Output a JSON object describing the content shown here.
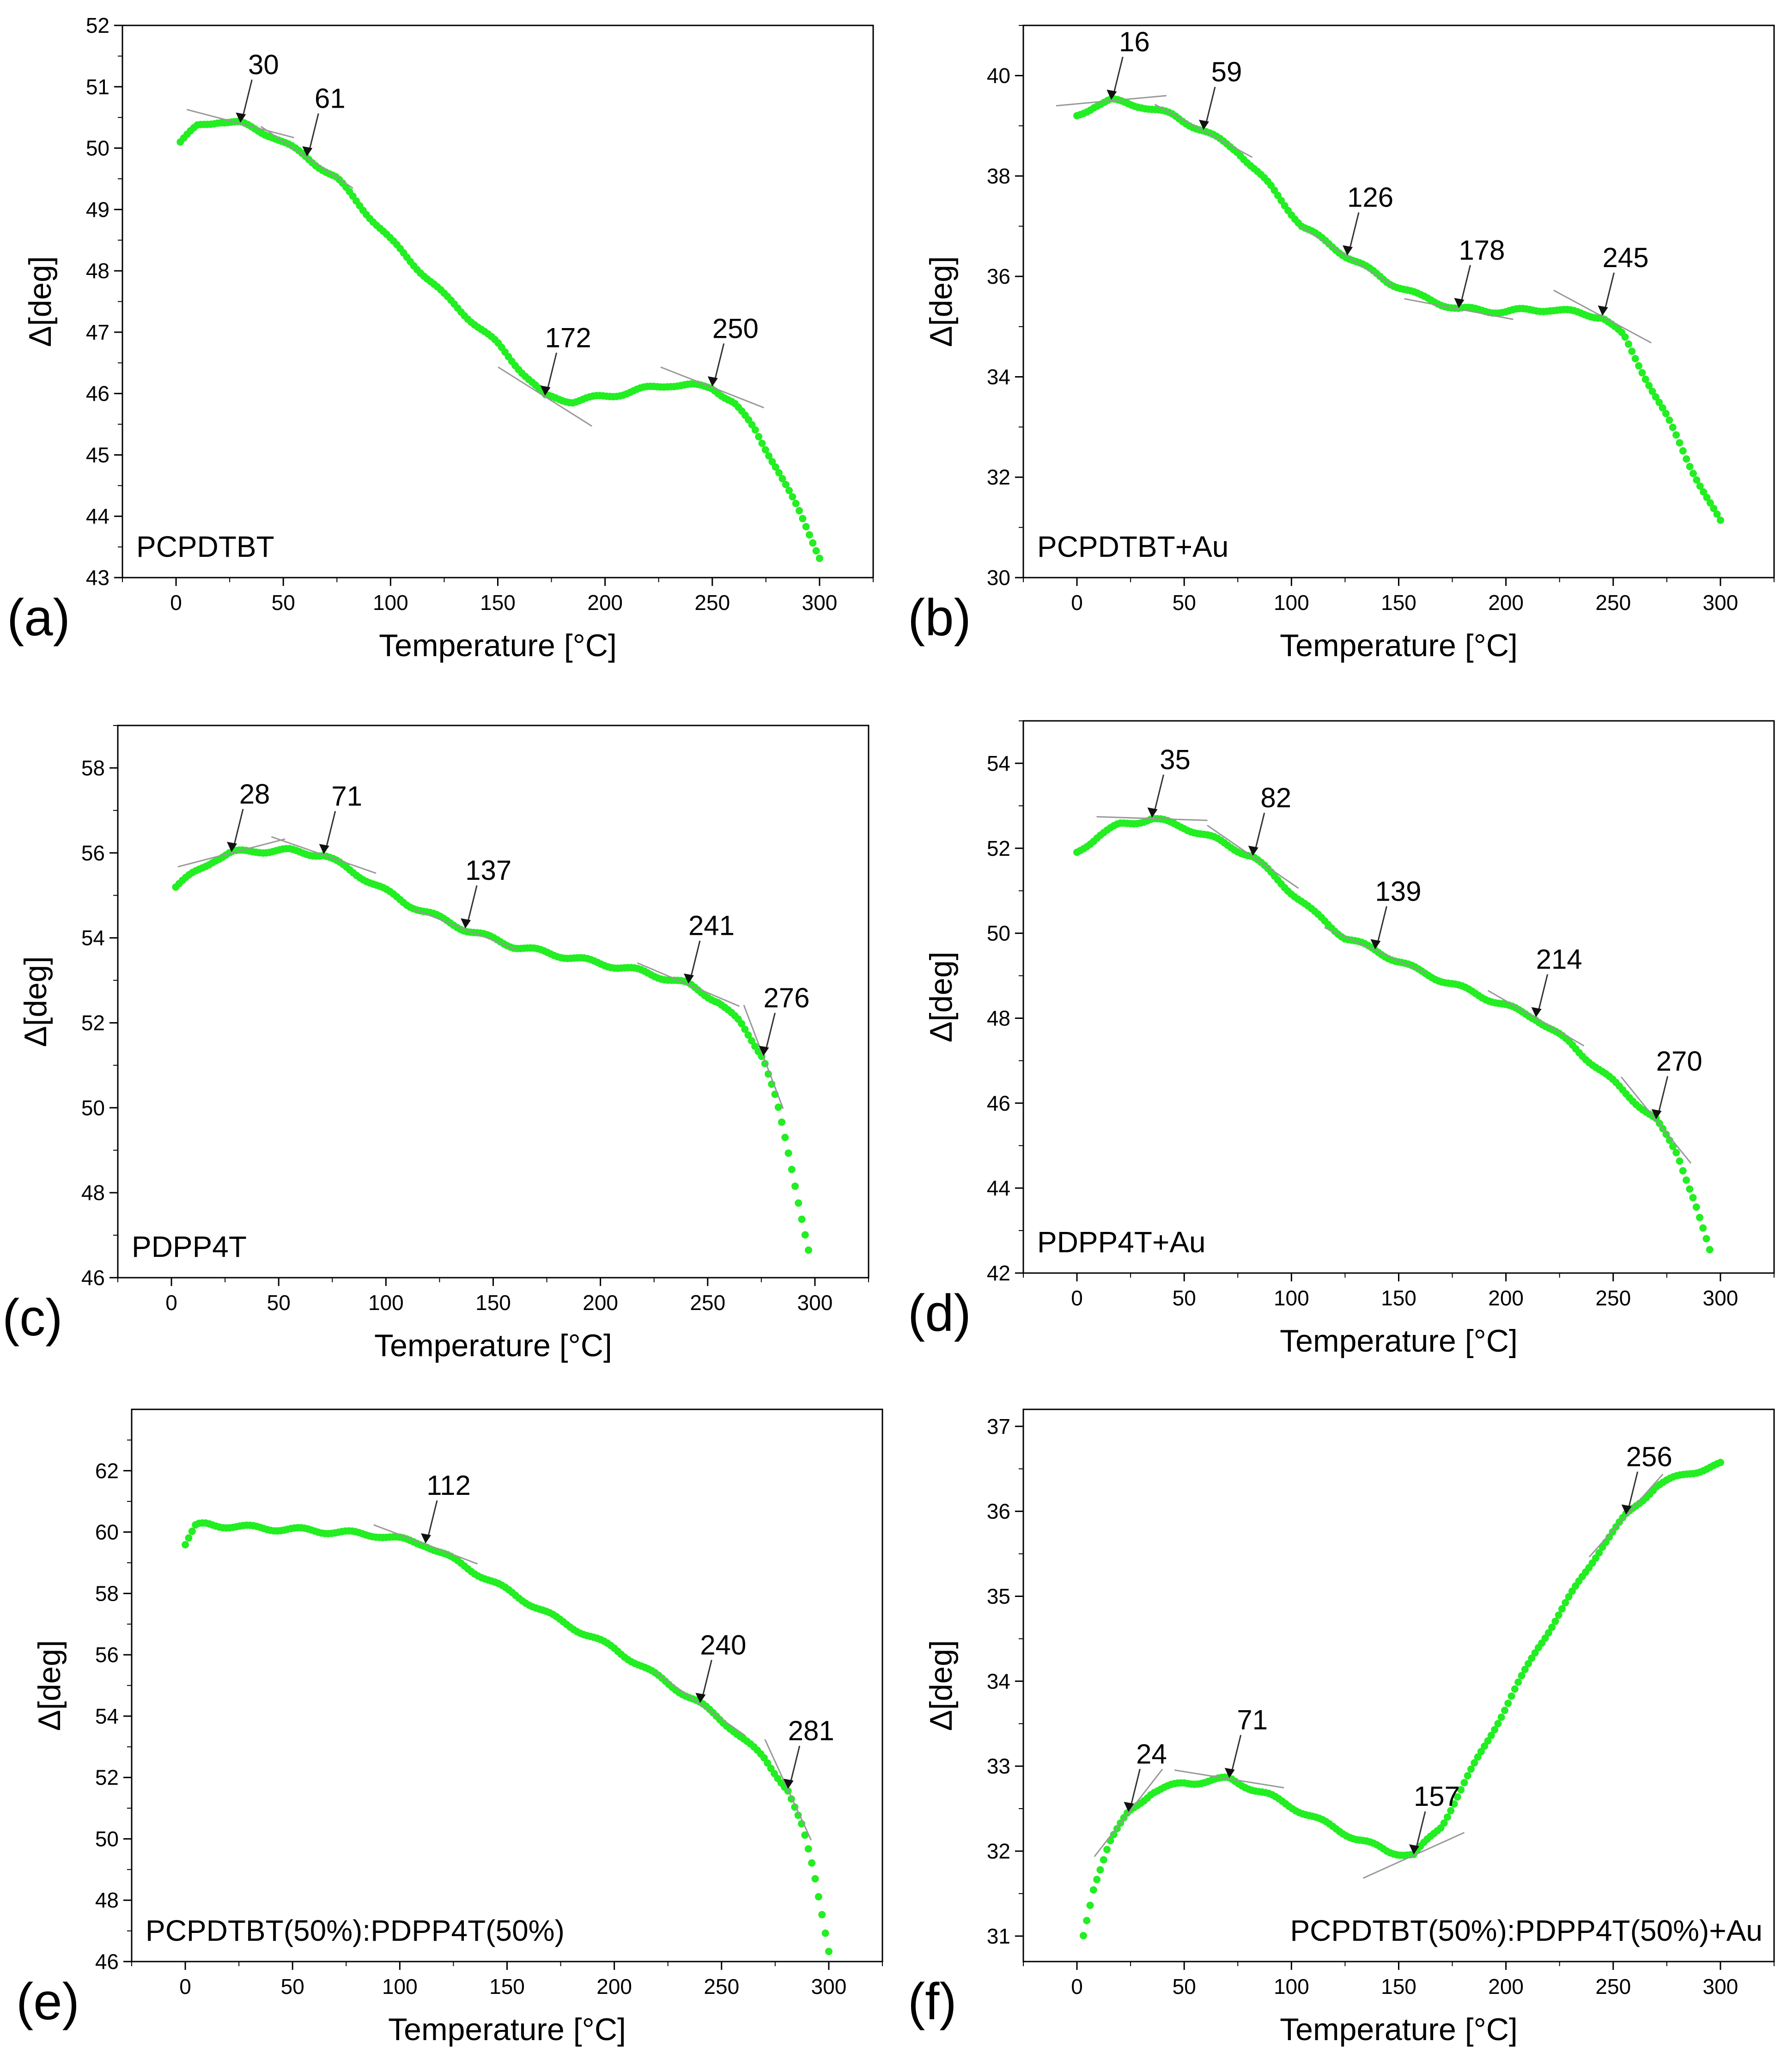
{
  "figure": {
    "chart_data": [
      {
        "type": "scatter",
        "panel": "(a)",
        "label": "PCPDTBT",
        "xlabel": "Temperature [°C]",
        "ylabel": "Δ[deg]",
        "xlim": [
          -25,
          325
        ],
        "ylim": [
          43,
          52
        ],
        "xticks": [
          0,
          50,
          100,
          150,
          200,
          250,
          300
        ],
        "yticks": [
          43,
          44,
          45,
          46,
          47,
          48,
          49,
          50,
          51,
          52
        ],
        "anchors": [
          [
            2,
            50.1
          ],
          [
            10,
            50.35
          ],
          [
            20,
            50.45
          ],
          [
            30,
            50.4
          ],
          [
            45,
            50.2
          ],
          [
            61,
            49.85
          ],
          [
            75,
            49.5
          ],
          [
            100,
            48.5
          ],
          [
            125,
            47.6
          ],
          [
            150,
            46.8
          ],
          [
            172,
            45.95
          ],
          [
            185,
            45.88
          ],
          [
            200,
            45.95
          ],
          [
            215,
            46.05
          ],
          [
            230,
            46.15
          ],
          [
            250,
            46.1
          ],
          [
            260,
            45.85
          ],
          [
            270,
            45.4
          ],
          [
            280,
            44.8
          ],
          [
            290,
            44.1
          ],
          [
            300,
            43.35
          ]
        ],
        "annotations": [
          {
            "x": 30,
            "y": 50.4,
            "text": "30"
          },
          {
            "x": 61,
            "y": 49.85,
            "text": "61"
          },
          {
            "x": 172,
            "y": 45.95,
            "text": "172"
          },
          {
            "x": 250,
            "y": 46.1,
            "text": "250"
          }
        ]
      },
      {
        "type": "scatter",
        "panel": "(b)",
        "label": "PCPDTBT+Au",
        "xlabel": "Temperature [°C]",
        "ylabel": "Δ[deg]",
        "xlim": [
          -25,
          325
        ],
        "ylim": [
          30,
          41
        ],
        "xticks": [
          0,
          50,
          100,
          150,
          200,
          250,
          300
        ],
        "yticks": [
          30,
          32,
          34,
          36,
          38,
          40
        ],
        "anchors": [
          [
            0,
            39.2
          ],
          [
            8,
            39.4
          ],
          [
            16,
            39.5
          ],
          [
            30,
            39.4
          ],
          [
            45,
            39.2
          ],
          [
            59,
            38.9
          ],
          [
            75,
            38.5
          ],
          [
            90,
            37.8
          ],
          [
            105,
            37.0
          ],
          [
            126,
            36.4
          ],
          [
            145,
            35.9
          ],
          [
            160,
            35.6
          ],
          [
            178,
            35.35
          ],
          [
            200,
            35.3
          ],
          [
            220,
            35.35
          ],
          [
            245,
            35.2
          ],
          [
            255,
            34.8
          ],
          [
            265,
            34.0
          ],
          [
            275,
            33.2
          ],
          [
            285,
            32.3
          ],
          [
            300,
            31.1
          ]
        ],
        "annotations": [
          {
            "x": 16,
            "y": 39.5,
            "text": "16"
          },
          {
            "x": 59,
            "y": 38.9,
            "text": "59"
          },
          {
            "x": 126,
            "y": 36.4,
            "text": "126"
          },
          {
            "x": 178,
            "y": 35.35,
            "text": "178"
          },
          {
            "x": 245,
            "y": 35.2,
            "text": "245"
          }
        ]
      },
      {
        "type": "scatter",
        "panel": "(c)",
        "label": "PDPP4T",
        "xlabel": "Temperature [°C]",
        "ylabel": "Δ[deg]",
        "xlim": [
          -25,
          325
        ],
        "ylim": [
          46,
          59
        ],
        "xticks": [
          0,
          50,
          100,
          150,
          200,
          250,
          300
        ],
        "yticks": [
          46,
          48,
          50,
          52,
          54,
          56,
          58
        ],
        "anchors": [
          [
            2,
            55.2
          ],
          [
            10,
            55.5
          ],
          [
            20,
            55.85
          ],
          [
            28,
            56.0
          ],
          [
            40,
            56.05
          ],
          [
            55,
            56.05
          ],
          [
            71,
            55.95
          ],
          [
            90,
            55.4
          ],
          [
            110,
            54.8
          ],
          [
            137,
            54.2
          ],
          [
            160,
            53.8
          ],
          [
            190,
            53.5
          ],
          [
            220,
            53.2
          ],
          [
            241,
            52.9
          ],
          [
            255,
            52.5
          ],
          [
            265,
            52.0
          ],
          [
            276,
            51.2
          ],
          [
            282,
            50.2
          ],
          [
            288,
            48.8
          ],
          [
            293,
            47.6
          ],
          [
            297,
            46.7
          ]
        ],
        "annotations": [
          {
            "x": 28,
            "y": 56.0,
            "text": "28"
          },
          {
            "x": 71,
            "y": 55.95,
            "text": "71"
          },
          {
            "x": 137,
            "y": 54.2,
            "text": "137"
          },
          {
            "x": 241,
            "y": 52.9,
            "text": "241"
          },
          {
            "x": 276,
            "y": 51.2,
            "text": "276"
          }
        ]
      },
      {
        "type": "scatter",
        "panel": "(d)",
        "label": "PDPP4T+Au",
        "xlabel": "Temperature [°C]",
        "ylabel": "Δ[deg]",
        "xlim": [
          -25,
          325
        ],
        "ylim": [
          42,
          55
        ],
        "xticks": [
          0,
          50,
          100,
          150,
          200,
          250,
          300
        ],
        "yticks": [
          42,
          44,
          46,
          48,
          50,
          52,
          54
        ],
        "anchors": [
          [
            0,
            51.9
          ],
          [
            10,
            52.3
          ],
          [
            20,
            52.55
          ],
          [
            35,
            52.7
          ],
          [
            50,
            52.5
          ],
          [
            65,
            52.2
          ],
          [
            82,
            51.8
          ],
          [
            95,
            51.2
          ],
          [
            110,
            50.5
          ],
          [
            125,
            49.9
          ],
          [
            139,
            49.6
          ],
          [
            160,
            49.1
          ],
          [
            185,
            48.6
          ],
          [
            214,
            48.0
          ],
          [
            230,
            47.4
          ],
          [
            250,
            46.5
          ],
          [
            270,
            45.6
          ],
          [
            280,
            44.8
          ],
          [
            288,
            43.7
          ],
          [
            295,
            42.5
          ]
        ],
        "annotations": [
          {
            "x": 35,
            "y": 52.7,
            "text": "35"
          },
          {
            "x": 82,
            "y": 51.8,
            "text": "82"
          },
          {
            "x": 139,
            "y": 49.6,
            "text": "139"
          },
          {
            "x": 214,
            "y": 48.0,
            "text": "214"
          },
          {
            "x": 270,
            "y": 45.6,
            "text": "270"
          }
        ]
      },
      {
        "type": "scatter",
        "panel": "(e)",
        "label": "PCPDTBT(50%):PDPP4T(50%)",
        "xlabel": "Temperature [°C]",
        "ylabel": "Δ[deg]",
        "xlim": [
          -25,
          325
        ],
        "ylim": [
          46,
          64
        ],
        "xticks": [
          0,
          50,
          100,
          150,
          200,
          250,
          300
        ],
        "yticks": [
          46,
          48,
          50,
          52,
          54,
          56,
          58,
          60,
          62
        ],
        "anchors": [
          [
            0,
            59.6
          ],
          [
            5,
            60.2
          ],
          [
            10,
            60.25
          ],
          [
            30,
            60.15
          ],
          [
            60,
            60.05
          ],
          [
            90,
            59.9
          ],
          [
            112,
            59.6
          ],
          [
            130,
            58.9
          ],
          [
            150,
            58.1
          ],
          [
            175,
            57.1
          ],
          [
            200,
            56.2
          ],
          [
            220,
            55.3
          ],
          [
            240,
            54.4
          ],
          [
            255,
            53.6
          ],
          [
            270,
            52.6
          ],
          [
            281,
            51.6
          ],
          [
            288,
            50.3
          ],
          [
            293,
            48.9
          ],
          [
            297,
            47.5
          ],
          [
            300,
            46.4
          ]
        ],
        "annotations": [
          {
            "x": 112,
            "y": 59.6,
            "text": "112"
          },
          {
            "x": 240,
            "y": 54.4,
            "text": "240"
          },
          {
            "x": 281,
            "y": 51.6,
            "text": "281"
          }
        ]
      },
      {
        "type": "scatter",
        "panel": "(f)",
        "label": "PCPDTBT(50%):PDPP4T(50%)+Au",
        "xlabel": "Temperature [°C]",
        "ylabel": "Δ[deg]",
        "xlim": [
          -25,
          325
        ],
        "ylim": [
          30.7,
          37.2
        ],
        "xticks": [
          0,
          50,
          100,
          150,
          200,
          250,
          300
        ],
        "yticks": [
          31,
          32,
          33,
          34,
          35,
          36,
          37
        ],
        "anchors": [
          [
            3,
            31.0
          ],
          [
            8,
            31.6
          ],
          [
            15,
            32.1
          ],
          [
            24,
            32.45
          ],
          [
            35,
            32.7
          ],
          [
            50,
            32.8
          ],
          [
            71,
            32.85
          ],
          [
            90,
            32.65
          ],
          [
            110,
            32.4
          ],
          [
            130,
            32.15
          ],
          [
            145,
            32.0
          ],
          [
            157,
            31.95
          ],
          [
            170,
            32.3
          ],
          [
            185,
            33.0
          ],
          [
            200,
            33.7
          ],
          [
            215,
            34.4
          ],
          [
            230,
            35.0
          ],
          [
            245,
            35.6
          ],
          [
            256,
            35.95
          ],
          [
            270,
            36.3
          ],
          [
            285,
            36.45
          ],
          [
            300,
            36.55
          ]
        ],
        "annotations": [
          {
            "x": 24,
            "y": 32.45,
            "text": "24"
          },
          {
            "x": 71,
            "y": 32.85,
            "text": "71"
          },
          {
            "x": 157,
            "y": 31.95,
            "text": "157"
          },
          {
            "x": 256,
            "y": 35.95,
            "text": "256"
          }
        ]
      }
    ]
  }
}
